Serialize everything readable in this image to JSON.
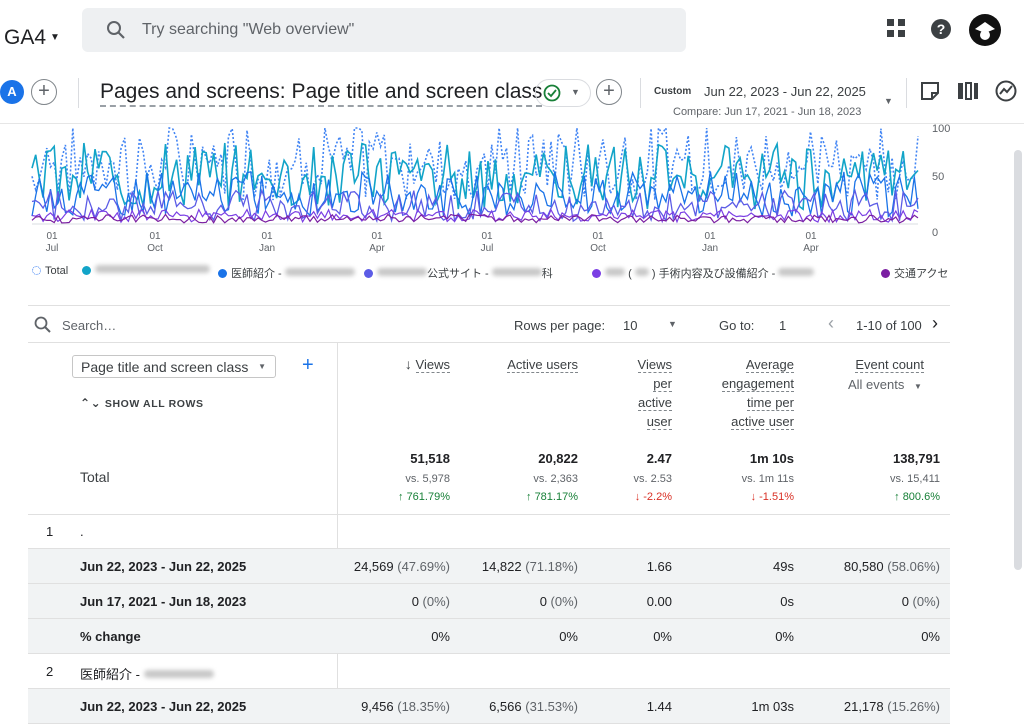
{
  "topbar": {
    "property": "GA4",
    "search_placeholder": "Try searching \"Web overview\""
  },
  "report": {
    "avatar_letter": "A",
    "title": "Pages and screens: Page title and screen class",
    "date_label": "Custom",
    "date_range": "Jun 22, 2023 - Jun 22, 2025",
    "compare_range": "Compare: Jun 17, 2021 - Jun 18, 2023"
  },
  "chart": {
    "y_ticks": [
      "100",
      "50",
      "0"
    ],
    "x_ticks": [
      {
        "day": "01",
        "month": "Jul"
      },
      {
        "day": "01",
        "month": "Oct"
      },
      {
        "day": "01",
        "month": "Jan"
      },
      {
        "day": "01",
        "month": "Apr"
      },
      {
        "day": "01",
        "month": "Jul"
      },
      {
        "day": "01",
        "month": "Oct"
      },
      {
        "day": "01",
        "month": "Jan"
      },
      {
        "day": "01",
        "month": "Apr"
      }
    ],
    "colors": {
      "total": "#4285f4",
      "s1": "#12a4c8",
      "s2": "#1a73e8",
      "s3": "#5c5ce6",
      "s4": "#7b3fe4",
      "s5": "#7b1fa2"
    }
  },
  "legend": {
    "total": "Total",
    "s2": "医師紹介 -",
    "s3": "公式サイト -",
    "s3_suffix": "科",
    "s4_open": "(",
    "s4_close": ")",
    "s4": "手術内容及び設備紹介 -",
    "s5": "交通アクセ"
  },
  "table_bar": {
    "search_placeholder": "Search…",
    "rows_per_page_label": "Rows per page:",
    "rows_per_page": "10",
    "goto_label": "Go to:",
    "goto_value": "1",
    "range": "1-10 of 100"
  },
  "columns": {
    "dimension": "Page title and screen class",
    "show_all_rows": "SHOW ALL ROWS",
    "views": "Views",
    "active_users": "Active users",
    "views_per_user": [
      "Views",
      "per",
      "active",
      "user"
    ],
    "avg_engagement": [
      "Average",
      "engagement",
      "time per",
      "active user"
    ],
    "event_count": "Event count",
    "event_filter": "All events"
  },
  "totals": {
    "label": "Total",
    "views": {
      "value": "51,518",
      "vs": "vs. 5,978",
      "change": "761.79%"
    },
    "active_users": {
      "value": "20,822",
      "vs": "vs. 2,363",
      "change": "781.17%"
    },
    "views_per_user": {
      "value": "2.47",
      "vs": "vs. 2.53",
      "change": "-2.2%"
    },
    "avg_engagement": {
      "value": "1m 10s",
      "vs": "vs. 1m 11s",
      "change": "-1.51%"
    },
    "event_count": {
      "value": "138,791",
      "vs": "vs. 15,411",
      "change": "800.6%"
    }
  },
  "rows": [
    {
      "num": "1",
      "title": ".",
      "current": {
        "label": "Jun 22, 2023 - Jun 22, 2025",
        "views": "24,569",
        "views_pct": "(47.69%)",
        "users": "14,822",
        "users_pct": "(71.18%)",
        "vpu": "1.66",
        "eng": "49s",
        "events": "80,580",
        "events_pct": "(58.06%)"
      },
      "previous": {
        "label": "Jun 17, 2021 - Jun 18, 2023",
        "views": "0",
        "views_pct": "(0%)",
        "users": "0",
        "users_pct": "(0%)",
        "vpu": "0.00",
        "eng": "0s",
        "events": "0",
        "events_pct": "(0%)"
      },
      "change": {
        "label": "% change",
        "views": "0%",
        "users": "0%",
        "vpu": "0%",
        "eng": "0%",
        "events": "0%"
      }
    },
    {
      "num": "2",
      "title": "医師紹介 -",
      "current": {
        "label": "Jun 22, 2023 - Jun 22, 2025",
        "views": "9,456",
        "views_pct": "(18.35%)",
        "users": "6,566",
        "users_pct": "(31.53%)",
        "vpu": "1.44",
        "eng": "1m 03s",
        "events": "21,178",
        "events_pct": "(15.26%)"
      }
    }
  ]
}
